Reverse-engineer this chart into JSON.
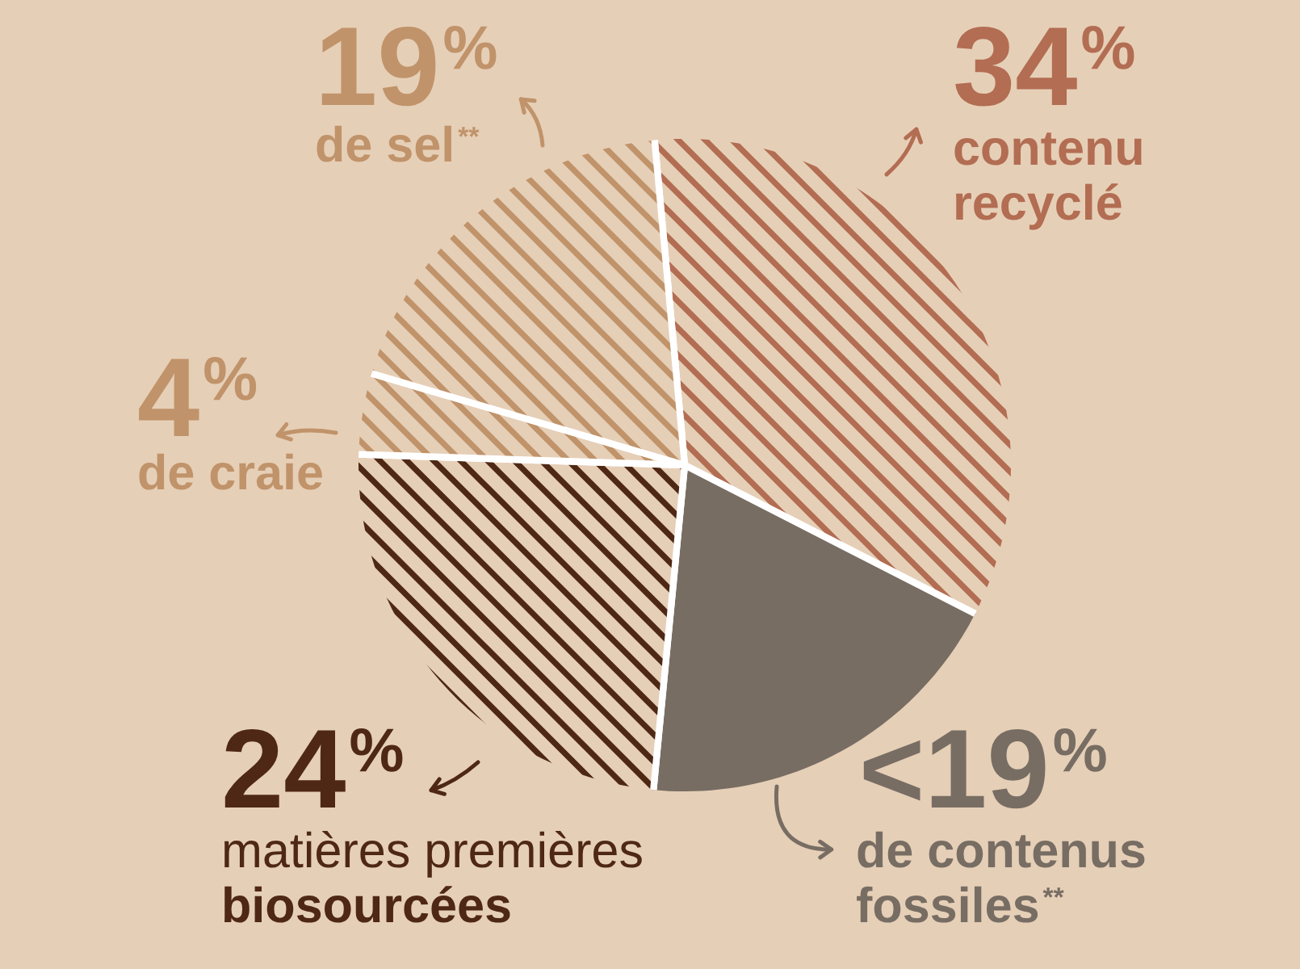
{
  "chart_data": {
    "type": "pie",
    "categories": [
      "contenu\nrecyclé",
      "de contenus\nfossiles$^{**}$",
      "matières premières\nbiosourcées",
      "de craie",
      "de sel$^{**}$"
    ],
    "values": [
      34,
      19,
      24,
      4,
      19
    ],
    "value_labels": [
      "34$^{%}$",
      "<19$^{%}$",
      "24$^{%}$",
      "4$^{%}$",
      "19$^{%}$"
    ],
    "colors": [
      "#b26d52",
      "#776d63",
      "#4e2814",
      "#c0936a",
      "#c0936a"
    ]
  }
}
